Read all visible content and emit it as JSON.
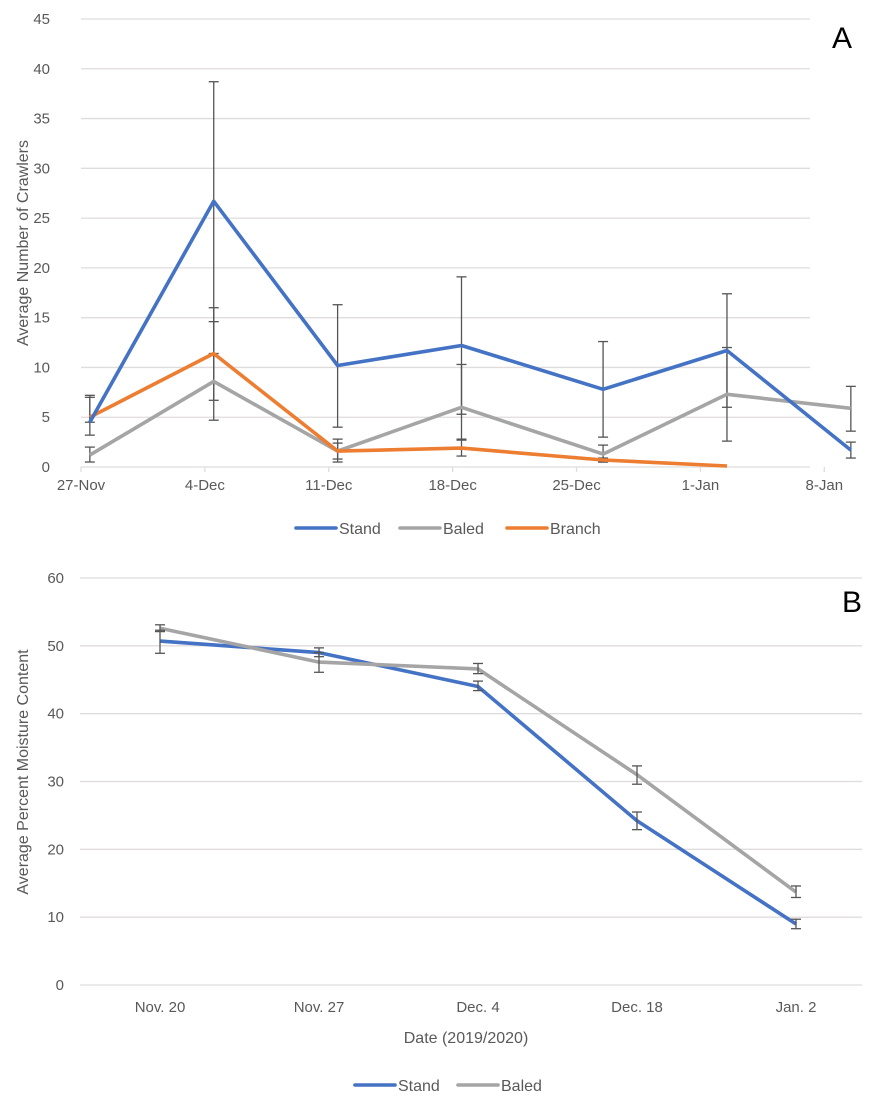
{
  "chart_data": [
    {
      "type": "line",
      "panel_label": "A",
      "title": "",
      "xlabel": "",
      "ylabel": "Average Number of Crawlers",
      "ylim": [
        0,
        45
      ],
      "yticks": [
        0,
        5,
        10,
        15,
        20,
        25,
        30,
        35,
        40,
        45
      ],
      "xticks": [
        "27-Nov",
        "4-Dec",
        "11-Dec",
        "18-Dec",
        "25-Dec",
        "1-Jan",
        "8-Jan"
      ],
      "x_day_range": [
        0,
        43
      ],
      "grid": true,
      "legend_position": "bottom",
      "x_days": [
        0.5,
        7.5,
        14.5,
        21.5,
        29.5,
        36.5,
        43.5
      ],
      "series": [
        {
          "name": "Stand",
          "color": "#4472C4",
          "values": [
            4.5,
            26.7,
            10.2,
            12.2,
            7.8,
            11.7,
            1.7
          ],
          "err_low": [
            3.2,
            4.7,
            4.0,
            5.3,
            3.0,
            6.0,
            0.9
          ],
          "err_high": [
            7.2,
            38.7,
            16.3,
            19.1,
            12.6,
            17.4,
            2.5
          ]
        },
        {
          "name": "Baled",
          "color": "#A5A5A5",
          "values": [
            1.2,
            8.6,
            1.6,
            6.0,
            1.3,
            7.3,
            5.9
          ],
          "err_low": [
            0.5,
            6.7,
            0.5,
            2.7,
            0.5,
            2.6,
            3.6
          ],
          "err_high": [
            2.0,
            14.6,
            2.4,
            10.3,
            2.2,
            12.0,
            8.1
          ]
        },
        {
          "name": "Branch",
          "color": "#ED7D31",
          "values": [
            5.0,
            11.4,
            1.6,
            1.9,
            0.7,
            0.1
          ],
          "err_low": [
            4.5,
            11.4,
            0.8,
            1.1,
            0.5,
            0.1
          ],
          "err_high": [
            7.0,
            16.0,
            2.8,
            2.8,
            0.9,
            0.1
          ]
        }
      ]
    },
    {
      "type": "line",
      "panel_label": "B",
      "title": "",
      "xlabel": "Date (2019/2020)",
      "ylabel": "Average Percent Moisture Content",
      "ylim": [
        0,
        60
      ],
      "yticks": [
        0,
        10,
        20,
        30,
        40,
        50,
        60
      ],
      "categories": [
        "Nov. 20",
        "Nov. 27",
        "Dec. 4",
        "Dec. 18",
        "Jan. 2"
      ],
      "grid": true,
      "legend_position": "bottom",
      "series": [
        {
          "name": "Stand",
          "color": "#4472C4",
          "values": [
            50.7,
            49.0,
            44.0,
            24.2,
            9.0
          ],
          "err_low": [
            48.9,
            48.4,
            43.4,
            22.9,
            8.3
          ],
          "err_high": [
            52.3,
            49.7,
            44.8,
            25.5,
            9.7
          ]
        },
        {
          "name": "Baled",
          "color": "#A5A5A5",
          "values": [
            52.6,
            47.6,
            46.6,
            31.0,
            13.7
          ],
          "err_low": [
            52.1,
            46.1,
            45.9,
            29.6,
            12.9
          ],
          "err_high": [
            53.1,
            49.0,
            47.4,
            32.3,
            14.6
          ]
        }
      ]
    }
  ]
}
